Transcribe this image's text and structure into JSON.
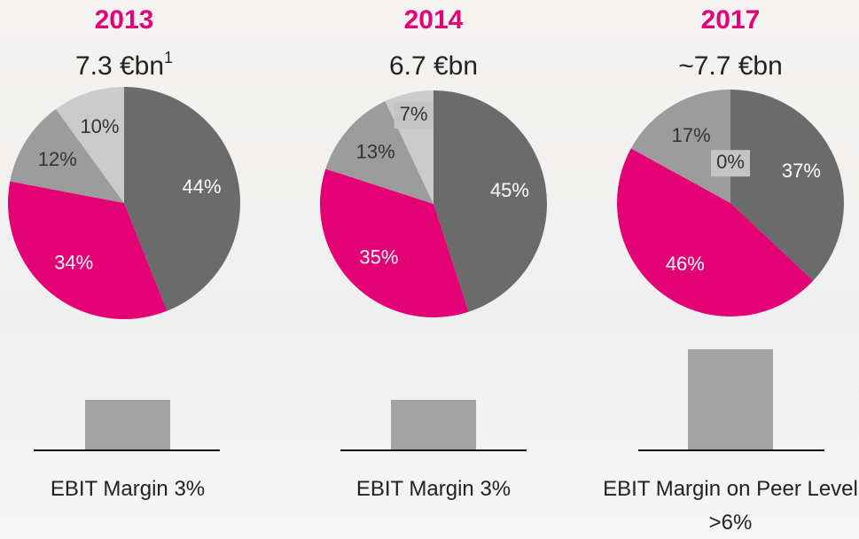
{
  "chart_data": [
    {
      "type": "pie",
      "title": "2013",
      "subtitle": "7.3 €bn",
      "subtitle_note": "1",
      "values": [
        44,
        34,
        12,
        10
      ],
      "value_labels": [
        "44%",
        "34%",
        "12%",
        "10%"
      ],
      "colors": [
        "#6b6b6b",
        "#e20074",
        "#9c9c9c",
        "#cbcbcb"
      ]
    },
    {
      "type": "pie",
      "title": "2014",
      "subtitle": "6.7 €bn",
      "values": [
        45,
        35,
        13,
        7
      ],
      "value_labels": [
        "45%",
        "35%",
        "13%",
        "7%"
      ],
      "colors": [
        "#6b6b6b",
        "#e20074",
        "#9c9c9c",
        "#cbcbcb"
      ]
    },
    {
      "type": "pie",
      "title": "2017",
      "subtitle": "~7.7 €bn",
      "values": [
        37,
        46,
        17,
        0
      ],
      "value_labels": [
        "37%",
        "46%",
        "17%",
        "0%"
      ],
      "colors": [
        "#6b6b6b",
        "#e20074",
        "#9c9c9c",
        "#cbcbcb"
      ]
    },
    {
      "type": "bar",
      "categories": [
        "EBIT Margin 3%",
        "EBIT Margin 3%",
        "EBIT Margin on Peer Level >6%"
      ],
      "values": [
        3,
        3,
        6
      ],
      "color": "#a3a3a3"
    }
  ]
}
